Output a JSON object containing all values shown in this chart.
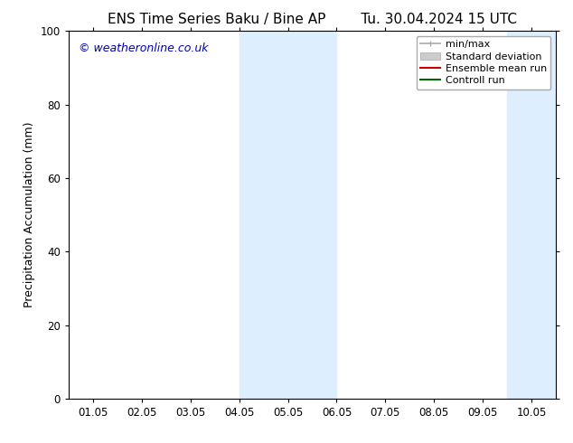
{
  "title_left": "ENS Time Series Baku / Bine AP",
  "title_right": "Tu. 30.04.2024 15 UTC",
  "ylabel": "Precipitation Accumulation (mm)",
  "watermark": "© weatheronline.co.uk",
  "watermark_color": "#0000bb",
  "ylim": [
    0,
    100
  ],
  "xlim_start": -0.5,
  "xlim_end": 9.5,
  "xtick_labels": [
    "01.05",
    "02.05",
    "03.05",
    "04.05",
    "05.05",
    "06.05",
    "07.05",
    "08.05",
    "09.05",
    "10.05"
  ],
  "xtick_positions": [
    0,
    1,
    2,
    3,
    4,
    5,
    6,
    7,
    8,
    9
  ],
  "ytick_positions": [
    0,
    20,
    40,
    60,
    80,
    100
  ],
  "bg_color": "#ffffff",
  "shaded_bands": [
    {
      "x_start": 3.0,
      "x_end": 5.0,
      "color": "#ddeeff"
    },
    {
      "x_start": 8.5,
      "x_end": 9.5,
      "color": "#ddeeff"
    }
  ],
  "legend_items": [
    {
      "label": "min/max",
      "color": "#aaaaaa",
      "type": "minmax"
    },
    {
      "label": "Standard deviation",
      "color": "#cccccc",
      "type": "band"
    },
    {
      "label": "Ensemble mean run",
      "color": "#cc0000",
      "type": "line"
    },
    {
      "label": "Controll run",
      "color": "#006600",
      "type": "line"
    }
  ],
  "title_fontsize": 11,
  "axis_label_fontsize": 9,
  "tick_fontsize": 8.5,
  "watermark_fontsize": 9,
  "legend_fontsize": 8
}
